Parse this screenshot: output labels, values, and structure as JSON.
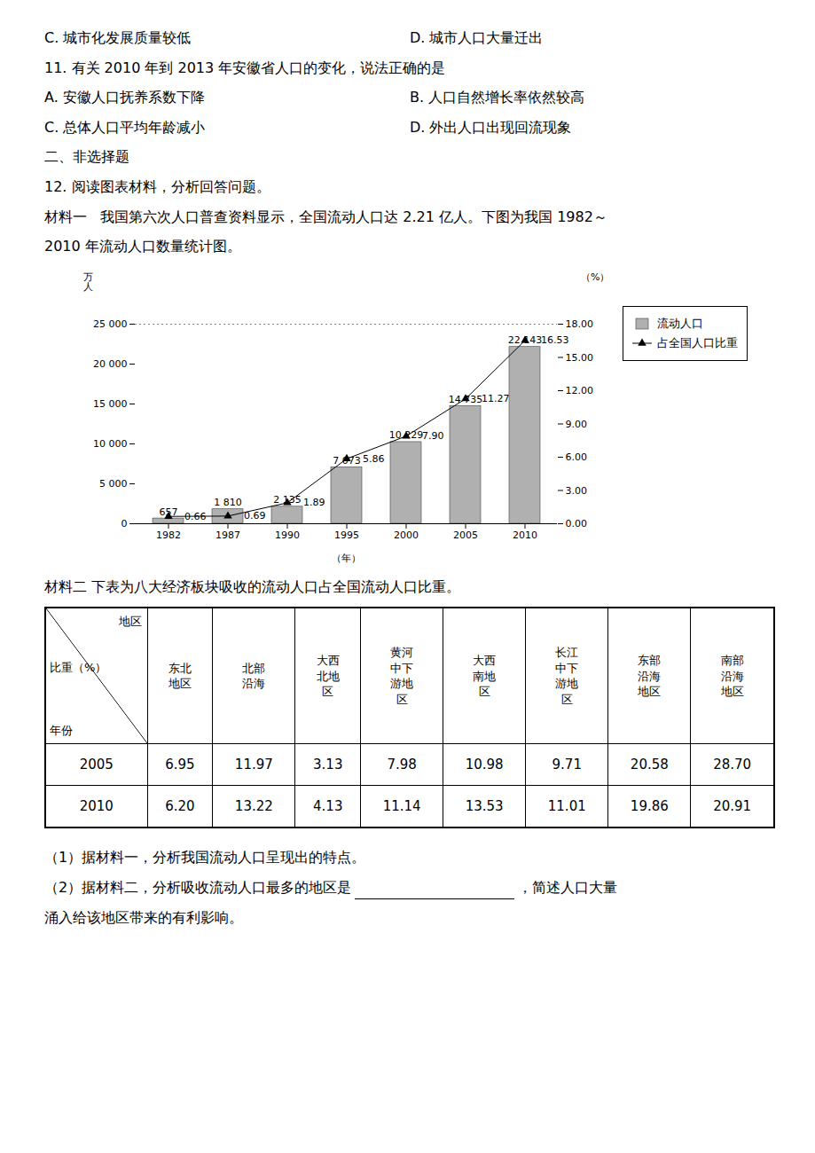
{
  "chart_data": [
    {
      "type": "bar",
      "annotations": [
        [
          "C. 城市化发展质量较低",
          "D. 城市人口大量迁出"
        ],
        [
          "11. 有关 2010 年到 2013 年安徽省人口的变化，说法正确的是"
        ],
        [
          "A. 安徽人口抚养系数下降",
          "B. 人口自然增长率依然较高"
        ],
        [
          "C. 总体人口平均年龄减小",
          "D. 外出人口出现回流现象"
        ],
        [
          "二、非选择题"
        ],
        [
          "12. 阅读图表材料，分析回答问题。"
        ],
        [
          "材料一   我国第六次人口普查资料显示，全国流动人口达 2.21 亿人。下图为我国 1982～"
        ],
        [
          "2010 年流动人口数量统计图。"
        ]
      ],
      "categories": [
        "1982",
        "1987",
        "1990",
        "1995",
        "2000",
        "2005",
        "2010"
      ],
      "x_label": "（年）",
      "y_label": "万\n人",
      "y2_label": "（%）",
      "series": [
        {
          "name": "流动人口",
          "type": "bar",
          "color": "#b0b0b0",
          "values": [
            657,
            1810,
            2135,
            7073,
            10229,
            14735,
            22143
          ],
          "value_labels": [
            "657",
            "1 810",
            "2 135",
            "7 073",
            "10 229",
            "14 735",
            "22 143"
          ]
        },
        {
          "name": "占全国人口比重",
          "type": "line",
          "axis": "y2",
          "color": "#000000",
          "marker": "triangle",
          "values": [
            0.66,
            0.69,
            1.89,
            5.86,
            7.9,
            11.27,
            16.53
          ],
          "value_labels": [
            "0.66",
            "0.69",
            "1.89",
            "5.86",
            "7.90",
            "11.27",
            "16.53"
          ]
        }
      ],
      "ylim": [
        0,
        25000
      ],
      "yticks": [
        0,
        {
          "value": 5000,
          "label": "5 000"
        },
        {
          "value": 10000,
          "label": "10 000"
        },
        {
          "value": 15000,
          "label": "15 000"
        },
        {
          "value": 20000,
          "label": "20 000"
        },
        {
          "value": 25000,
          "label": "25 000"
        }
      ],
      "y2lim": [
        0,
        18
      ],
      "y2ticks": [
        {
          "value": 0,
          "label": "0.00"
        },
        {
          "value": 3,
          "label": "3.00"
        },
        {
          "value": 6,
          "label": "6.00"
        },
        {
          "value": 9,
          "label": "9.00"
        },
        {
          "value": 12,
          "label": "12.00"
        },
        {
          "value": 15,
          "label": "15.00"
        },
        {
          "value": 18,
          "label": "18.00"
        }
      ],
      "data_labels": true,
      "legend": "right",
      "grid": false
    },
    {
      "type": "table",
      "title": "材料二   下表为八大经济板块吸收的流动人口占全国流动人口比重。",
      "x_label": "地区",
      "y_label": "年份",
      "subtitle": "比重（%）",
      "categories": [
        "东北\n地区",
        "北部\n沿海",
        "大西\n北地\n区",
        "黄河\n中下\n游地\n区",
        "大西\n南地\n区",
        "长江\n中下\n游地\n区",
        "东部\n沿海\n地区",
        "南部\n沿海\n地区"
      ],
      "series": [
        {
          "name": "2005",
          "values": [
            6.95,
            11.97,
            3.13,
            7.98,
            10.98,
            9.71,
            20.58,
            28.7
          ],
          "value_labels": [
            "6.95",
            "11.97",
            "3.13",
            "7.98",
            "10.98",
            "9.71",
            "20.58",
            "28.70"
          ]
        },
        {
          "name": "2010",
          "values": [
            6.2,
            13.22,
            4.13,
            11.14,
            13.53,
            11.01,
            19.86,
            20.91
          ],
          "value_labels": [
            "6.20",
            "13.22",
            "4.13",
            "11.14",
            "13.53",
            "11.01",
            "19.86",
            "20.91"
          ]
        }
      ],
      "annotations": [
        [
          "（1）据材料一，分析我国流动人口呈现出的特点。"
        ],
        [
          "（2）据材料二，分析吸收流动人口最多的地区是",
          "，简述人口大量"
        ],
        [
          "涌入给该地区带来的有利影响。"
        ]
      ]
    }
  ]
}
